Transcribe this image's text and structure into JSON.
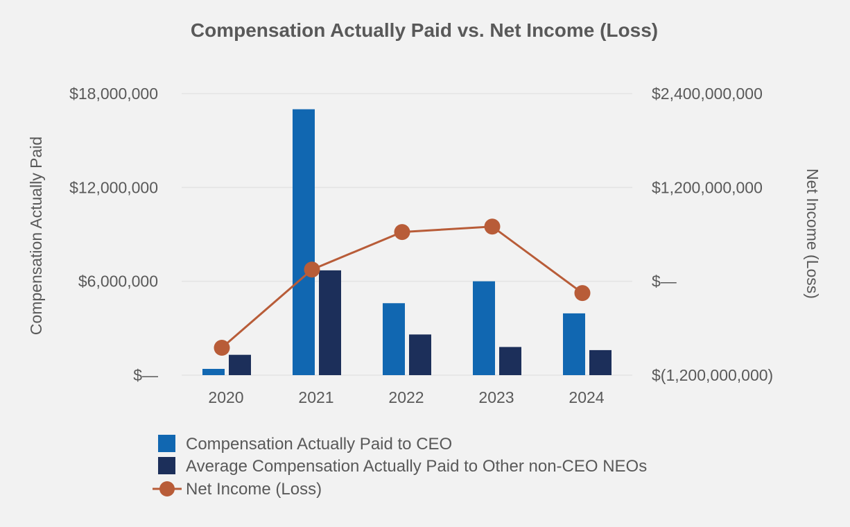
{
  "chart_data": {
    "type": "bar",
    "title": "Compensation Actually Paid vs. Net Income (Loss)",
    "categories": [
      "2020",
      "2021",
      "2022",
      "2023",
      "2024"
    ],
    "ylabel": "Compensation Actually Paid",
    "y2label": "Net Income (Loss)",
    "ylim": [
      0,
      18000000
    ],
    "y2lim": [
      -1200000000,
      2400000000
    ],
    "yticks": [
      {
        "value": 0,
        "label": "$—"
      },
      {
        "value": 6000000,
        "label": "$6,000,000"
      },
      {
        "value": 12000000,
        "label": "$12,000,000"
      },
      {
        "value": 18000000,
        "label": "$18,000,000"
      }
    ],
    "y2ticks": [
      {
        "value": -1200000000,
        "label": "$(1,200,000,000)"
      },
      {
        "value": 0,
        "label": "$—"
      },
      {
        "value": 1200000000,
        "label": "$1,200,000,000"
      },
      {
        "value": 2400000000,
        "label": "$2,400,000,000"
      }
    ],
    "grid": true,
    "legend_position": "bottom-center",
    "series": [
      {
        "name": "Compensation Actually Paid to CEO",
        "type": "bar",
        "axis": "left",
        "color": "#1167b1",
        "values": [
          400000,
          17000000,
          4600000,
          6000000,
          3950000
        ]
      },
      {
        "name": "Average Compensation Actually Paid to Other non-CEO NEOs",
        "type": "bar",
        "axis": "left",
        "color": "#1c2f5a",
        "values": [
          1300000,
          6700000,
          2600000,
          1800000,
          1600000
        ]
      },
      {
        "name": "Net Income (Loss)",
        "type": "line",
        "axis": "right",
        "color": "#b85c38",
        "values": [
          -850000000,
          150000000,
          630000000,
          700000000,
          -150000000
        ]
      }
    ]
  }
}
